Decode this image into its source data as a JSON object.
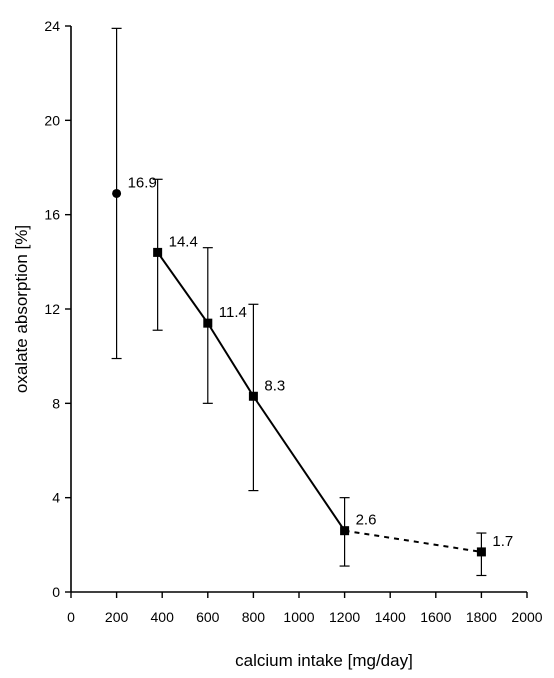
{
  "chart_data": {
    "type": "line",
    "xlabel": "calcium intake [mg/day]",
    "ylabel": "oxalate absorption [%]",
    "xlim": [
      0,
      2000
    ],
    "ylim": [
      0,
      24
    ],
    "x_ticks": [
      0,
      200,
      400,
      600,
      800,
      1000,
      1200,
      1400,
      1600,
      1800,
      2000
    ],
    "y_ticks": [
      0,
      4,
      8,
      12,
      16,
      20,
      24
    ],
    "grid": false,
    "legend": "none",
    "points": [
      {
        "x": 200,
        "y": 16.9,
        "err_low": 9.9,
        "err_high": 23.9,
        "label": "16.9",
        "marker": "circle"
      },
      {
        "x": 380,
        "y": 14.4,
        "err_low": 11.1,
        "err_high": 17.5,
        "label": "14.4",
        "marker": "square"
      },
      {
        "x": 600,
        "y": 11.4,
        "err_low": 8.0,
        "err_high": 14.6,
        "label": "11.4",
        "marker": "square"
      },
      {
        "x": 800,
        "y": 8.3,
        "err_low": 4.3,
        "err_high": 12.2,
        "label": "8.3",
        "marker": "square"
      },
      {
        "x": 1200,
        "y": 2.6,
        "err_low": 1.1,
        "err_high": 4.0,
        "label": "2.6",
        "marker": "square"
      },
      {
        "x": 1800,
        "y": 1.7,
        "err_low": 0.7,
        "err_high": 2.5,
        "label": "1.7",
        "marker": "square"
      }
    ],
    "solid_segment_x": [
      380,
      600,
      800,
      1200
    ],
    "dashed_segment_x": [
      1200,
      1800
    ],
    "colors": {
      "ink": "#000000",
      "background": "#ffffff"
    }
  }
}
